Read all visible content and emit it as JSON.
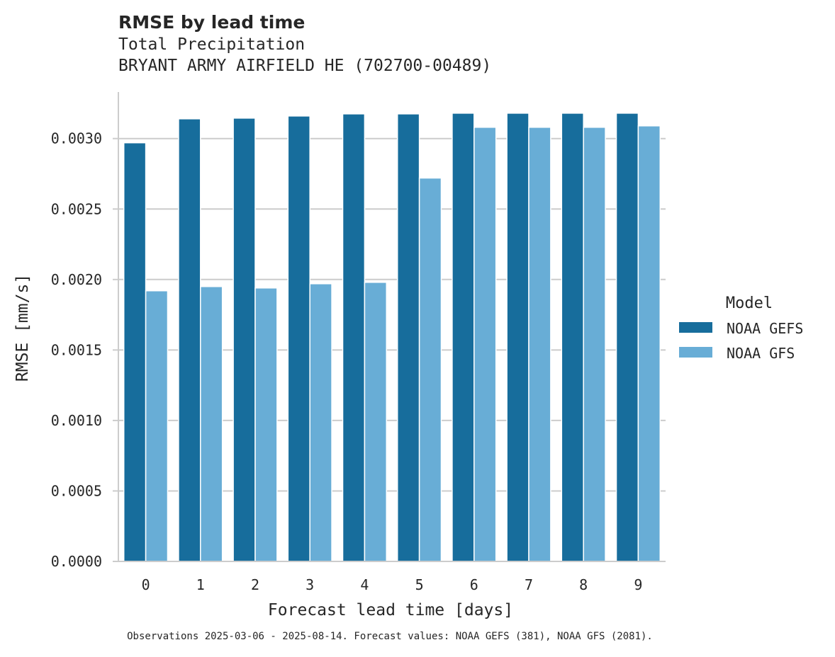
{
  "chart_data": {
    "type": "bar",
    "title": "RMSE by lead time",
    "subtitle_lines": [
      "Total Precipitation",
      "BRYANT ARMY AIRFIELD HE (702700-00489)"
    ],
    "xlabel": "Forecast lead time [days]",
    "ylabel": "RMSE [mm/s]",
    "categories": [
      "0",
      "1",
      "2",
      "3",
      "4",
      "5",
      "6",
      "7",
      "8",
      "9"
    ],
    "ylim": [
      0,
      0.00333
    ],
    "yticks": [
      "0.0000",
      "0.0005",
      "0.0010",
      "0.0015",
      "0.0020",
      "0.0025",
      "0.0030"
    ],
    "ytick_values": [
      0,
      0.0005,
      0.001,
      0.0015,
      0.002,
      0.0025,
      0.003
    ],
    "grid": "y",
    "legend": {
      "title": "Model",
      "placement": "right"
    },
    "series": [
      {
        "name": "NOAA GEFS",
        "color": "#176d9c",
        "values": [
          0.00297,
          0.00314,
          0.003145,
          0.00316,
          0.003175,
          0.003175,
          0.00318,
          0.00318,
          0.00318,
          0.00318
        ]
      },
      {
        "name": "NOAA GFS",
        "color": "#68add6",
        "values": [
          0.00192,
          0.00195,
          0.00194,
          0.00197,
          0.00198,
          0.00272,
          0.00308,
          0.00308,
          0.00308,
          0.00309
        ]
      }
    ],
    "footnote": "Observations 2025-03-06 - 2025-08-14. Forecast values: NOAA GEFS (381), NOAA GFS (2081)."
  }
}
